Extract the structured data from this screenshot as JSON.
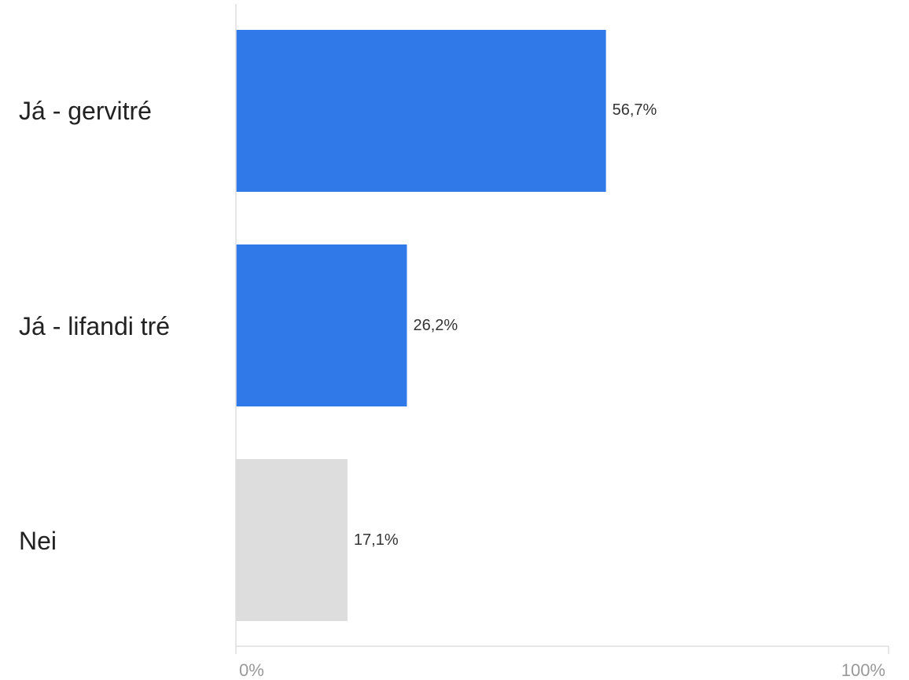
{
  "chart_data": {
    "type": "bar",
    "orientation": "horizontal",
    "categories": [
      "Já - gervitré",
      "Já - lifandi tré",
      "Nei"
    ],
    "values": [
      56.7,
      26.2,
      17.1
    ],
    "value_labels": [
      "56,7%",
      "26,2%",
      "17,1%"
    ],
    "colors": [
      "#3079e8",
      "#3079e8",
      "#dddddd"
    ],
    "xlim": [
      0,
      100
    ],
    "x_ticks": [
      "0%",
      "100%"
    ],
    "grid": false,
    "title": "",
    "xlabel": "",
    "ylabel": ""
  }
}
